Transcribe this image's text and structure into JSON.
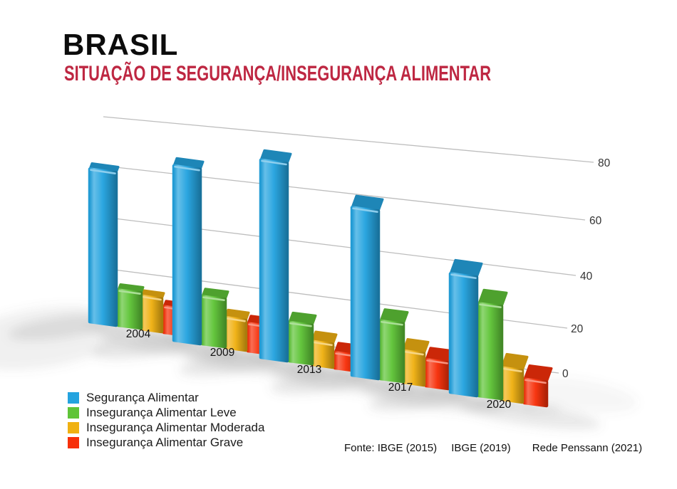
{
  "header": {
    "title": "BRASIL",
    "subtitle": "SITUAÇÃO DE SEGURANÇA/INSEGURANÇA ALIMENTAR",
    "title_color": "#0c0c0c",
    "subtitle_color": "#be2742"
  },
  "chart_data": {
    "type": "bar",
    "projection": "3d",
    "title": "BRASIL",
    "subtitle": "SITUAÇÃO DE SEGURANÇA/INSEGURANÇA ALIMENTAR",
    "categories": [
      "2004",
      "2009",
      "2013",
      "2017",
      "2020"
    ],
    "series": [
      {
        "name": "Segurança Alimentar",
        "color": "#24A3DF",
        "values": [
          65,
          70,
          77,
          64,
          45
        ]
      },
      {
        "name": "Insegurança Alimentar Leve",
        "color": "#5FC438",
        "values": [
          15,
          19,
          15,
          22,
          35
        ]
      },
      {
        "name": "Insegurança Alimentar Moderada",
        "color": "#F0B112",
        "values": [
          14,
          12,
          9,
          12,
          12
        ]
      },
      {
        "name": "Insegurança Alimentar Grave",
        "color": "#F7300A",
        "values": [
          11,
          11,
          6,
          10,
          9
        ]
      }
    ],
    "unit": "%",
    "xlabel": "",
    "ylabel": "",
    "yticks": [
      0,
      20,
      40,
      60,
      80
    ],
    "ylim": [
      0,
      80
    ],
    "grid": true,
    "grid_color": "#bdbdbd",
    "tick_label_color": "#333333",
    "category_label_color": "#111111",
    "legend_position": "bottom-left"
  },
  "footer": {
    "sources": [
      "Fonte: IBGE (2015)",
      "IBGE (2019)",
      "Rede Penssann (2021)"
    ]
  }
}
